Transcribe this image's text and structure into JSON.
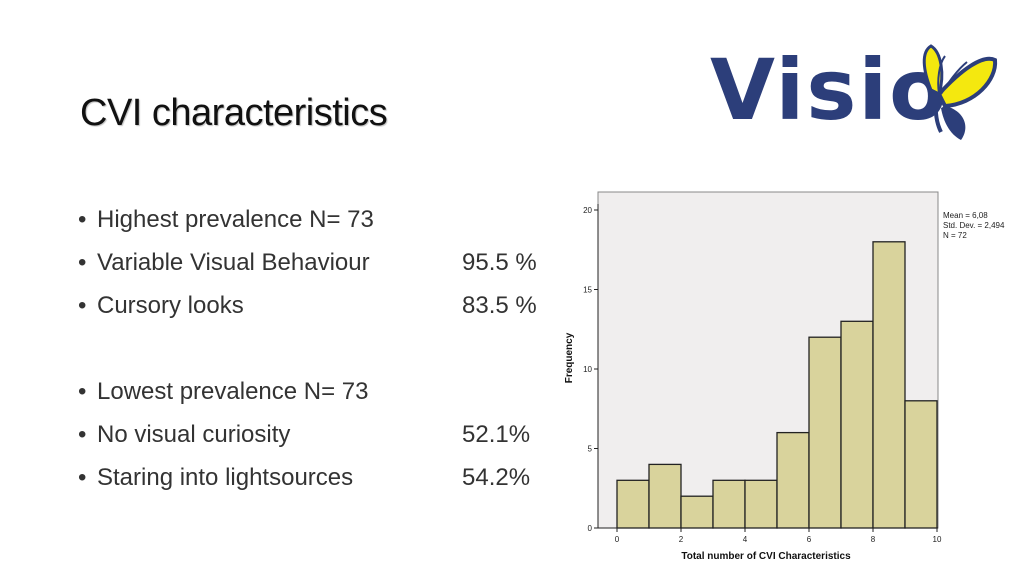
{
  "slide": {
    "title": "CVI characteristics",
    "logo_text": "Visio"
  },
  "bullets": [
    {
      "label": "Highest prevalence N= 73",
      "value": ""
    },
    {
      "label": "Variable Visual Behaviour",
      "value": "95.5 %"
    },
    {
      "label": "Cursory looks",
      "value": "83.5 %"
    },
    {
      "label": "Lowest prevalence N= 73",
      "value": ""
    },
    {
      "label": "No visual curiosity",
      "value": "52.1%"
    },
    {
      "label": "Staring into lightsources",
      "value": "54.2%"
    }
  ],
  "chart_data": {
    "type": "bar",
    "xlabel": "Total number of CVI Characteristics",
    "ylabel": "Frequency",
    "bins": [
      {
        "start": 0,
        "end": 1,
        "value": 3
      },
      {
        "start": 1,
        "end": 2,
        "value": 4
      },
      {
        "start": 2,
        "end": 3,
        "value": 2
      },
      {
        "start": 3,
        "end": 4,
        "value": 3
      },
      {
        "start": 4,
        "end": 5,
        "value": 3
      },
      {
        "start": 5,
        "end": 6,
        "value": 6
      },
      {
        "start": 6,
        "end": 7,
        "value": 12
      },
      {
        "start": 7,
        "end": 8,
        "value": 13
      },
      {
        "start": 8,
        "end": 9,
        "value": 18
      },
      {
        "start": 9,
        "end": 10,
        "value": 8
      }
    ],
    "xticks": [
      "0",
      "2",
      "4",
      "6",
      "8",
      "10"
    ],
    "yticks": [
      "0",
      "5",
      "10",
      "15",
      "20"
    ],
    "xlim": [
      -0.5,
      10
    ],
    "ylim": [
      0,
      20
    ],
    "stats": [
      "Mean = 6,08",
      "Std. Dev. = 2,494",
      "N = 72"
    ],
    "bar_color": "#d9d39c",
    "plot_bg": "#f0eeee"
  }
}
